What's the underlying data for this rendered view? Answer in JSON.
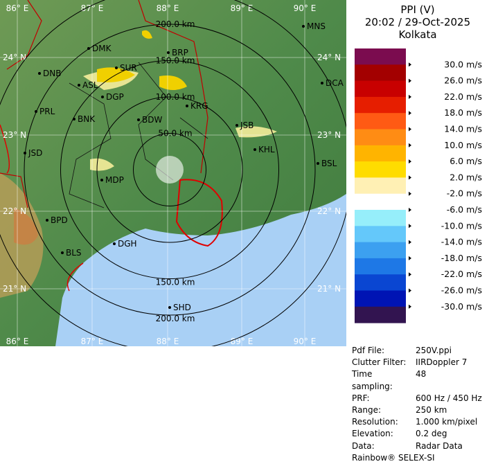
{
  "header": {
    "title": "PPI (V)",
    "datetime": "20:02 / 29-Oct-2025",
    "station": "Kolkata"
  },
  "legend": {
    "colors": [
      "#7b0c4f",
      "#a30000",
      "#c80000",
      "#e61e00",
      "#ff5a14",
      "#ff8c14",
      "#ffb400",
      "#ffdc00",
      "#fff0b4",
      "#ffffff",
      "#96eefa",
      "#64c8fa",
      "#3ca0f0",
      "#1e78e6",
      "#0a46d2",
      "#0014b4",
      "#321450"
    ],
    "labels": [
      "30.0 m/s",
      "26.0 m/s",
      "22.0 m/s",
      "18.0 m/s",
      "14.0 m/s",
      "10.0 m/s",
      "6.0 m/s",
      "2.0 m/s",
      "-2.0 m/s",
      "-6.0 m/s",
      "-10.0 m/s",
      "-14.0 m/s",
      "-18.0 m/s",
      "-22.0 m/s",
      "-26.0 m/s",
      "-30.0 m/s"
    ]
  },
  "info": {
    "rows": [
      [
        "Pdf File:",
        "250V.ppi"
      ],
      [
        "Clutter Filter:",
        "IIRDoppler 7"
      ],
      [
        "Time sampling:",
        "48"
      ],
      [
        "PRF:",
        "600 Hz / 450 Hz"
      ],
      [
        "Range:",
        "250 km"
      ],
      [
        "Resolution:",
        "1.000 km/pixel"
      ],
      [
        "Elevation:",
        "0.2 deg"
      ],
      [
        "Data:",
        "Radar Data"
      ]
    ],
    "footer": "Rainbow® SELEX-SI"
  },
  "map": {
    "lon_labels": [
      "86° E",
      "87° E",
      "88° E",
      "89° E",
      "90° E"
    ],
    "lat_labels": [
      "24° N",
      "23° N",
      "22° N",
      "21° N"
    ],
    "range_labels": [
      "50.0 km",
      "100.0 km",
      "150.0 km",
      "200.0 km"
    ],
    "cities": [
      "MNS",
      "DMK",
      "BRP",
      "DNB",
      "SUR",
      "ASL",
      "DGP",
      "DCA",
      "PRL",
      "BNK",
      "BDW",
      "KRG",
      "JSB",
      "KHL",
      "JSD",
      "BSL",
      "MDP",
      "BPD",
      "DGH",
      "BLS",
      "SHD"
    ]
  }
}
